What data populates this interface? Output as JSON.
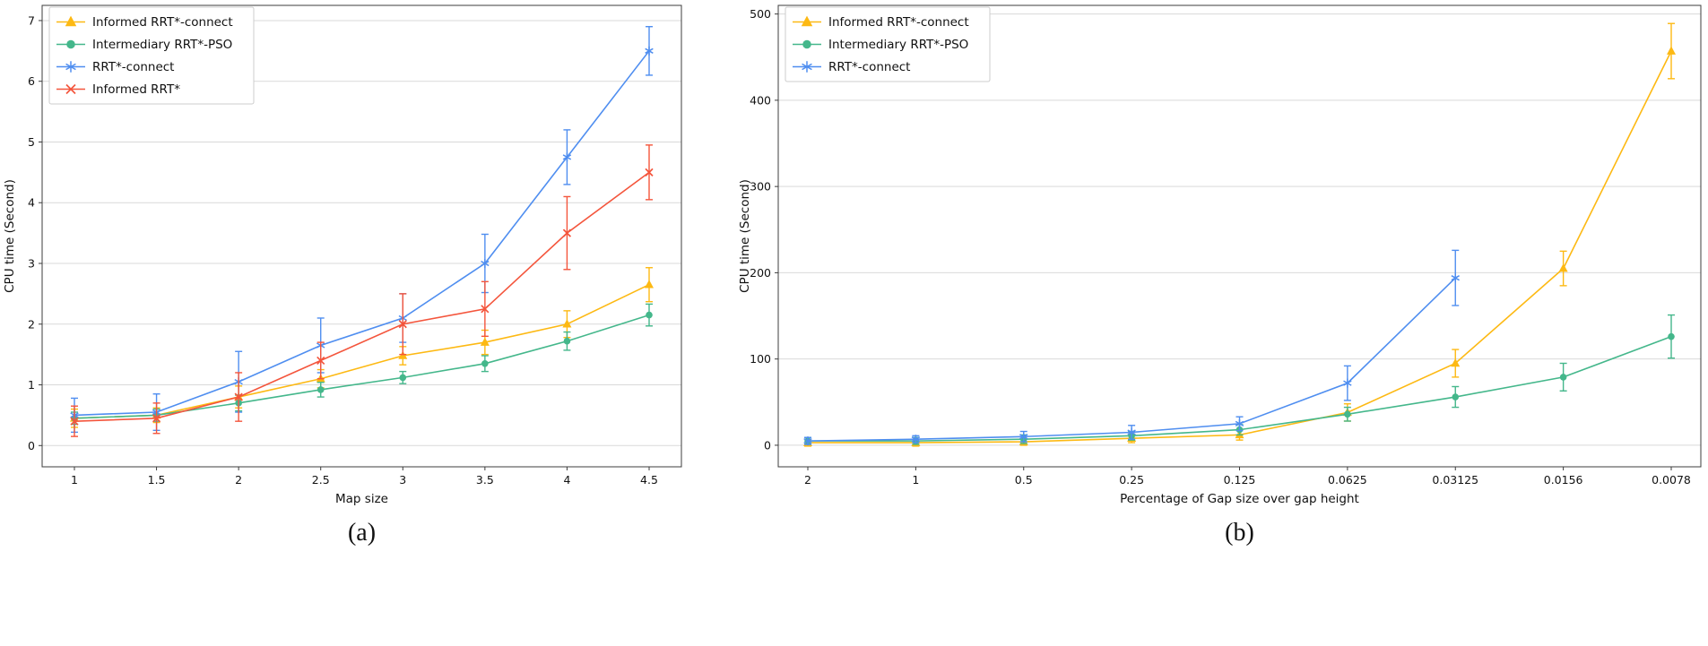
{
  "captions": {
    "a": "(a)",
    "b": "(b)"
  },
  "chart_data": [
    {
      "id": "a",
      "type": "line",
      "title": "",
      "xlabel": "Map size",
      "ylabel": "CPU time (Second)",
      "categories": [
        "1",
        "1.5",
        "2",
        "2.5",
        "3",
        "3.5",
        "4",
        "4.5"
      ],
      "y_ticks": [
        0,
        1,
        2,
        3,
        4,
        5,
        6,
        7
      ],
      "ylim": [
        -0.35,
        7.25
      ],
      "grid": "horizontal",
      "legend_position": "upper left",
      "series": [
        {
          "name": "Informed RRT*-connect",
          "color": "#FDB913",
          "marker": "triangle",
          "values": [
            0.45,
            0.5,
            0.8,
            1.1,
            1.48,
            1.7,
            2.0,
            2.65
          ],
          "yerr": [
            0.15,
            0.12,
            0.18,
            0.15,
            0.15,
            0.2,
            0.22,
            0.28
          ]
        },
        {
          "name": "Intermediary RRT*-PSO",
          "color": "#44B78B",
          "marker": "circle",
          "values": [
            0.45,
            0.5,
            0.7,
            0.92,
            1.12,
            1.35,
            1.72,
            2.15
          ],
          "yerr": [
            0.1,
            0.1,
            0.13,
            0.12,
            0.1,
            0.13,
            0.15,
            0.18
          ]
        },
        {
          "name": "RRT*-connect",
          "color": "#4F8EF0",
          "marker": "star",
          "values": [
            0.5,
            0.55,
            1.05,
            1.65,
            2.1,
            3.0,
            4.75,
            6.5
          ],
          "yerr": [
            0.28,
            0.3,
            0.5,
            0.45,
            0.4,
            0.48,
            0.45,
            0.4
          ]
        },
        {
          "name": "Informed RRT*",
          "color": "#F4553C",
          "marker": "x",
          "values": [
            0.4,
            0.45,
            0.8,
            1.4,
            2.0,
            2.25,
            3.5,
            4.5
          ],
          "yerr": [
            0.25,
            0.25,
            0.4,
            0.3,
            0.5,
            0.45,
            0.6,
            0.45
          ]
        }
      ]
    },
    {
      "id": "b",
      "type": "line",
      "title": "",
      "xlabel": "Percentage of Gap size over gap height",
      "ylabel": "CPU time (Second)",
      "categories": [
        "2",
        "1",
        "0.5",
        "0.25",
        "0.125",
        "0.0625",
        "0.03125",
        "0.0156",
        "0.0078"
      ],
      "y_ticks": [
        0,
        100,
        200,
        300,
        400,
        500
      ],
      "ylim": [
        -25,
        510
      ],
      "grid": "horizontal",
      "legend_position": "upper left",
      "series": [
        {
          "name": "Informed RRT*-connect",
          "color": "#FDB913",
          "marker": "triangle",
          "values": [
            3,
            3,
            4,
            8,
            12,
            38,
            95,
            205,
            457
          ],
          "yerr": [
            4,
            4,
            4,
            5,
            6,
            10,
            16,
            20,
            32
          ]
        },
        {
          "name": "Intermediary RRT*-PSO",
          "color": "#44B78B",
          "marker": "circle",
          "values": [
            5,
            5,
            7,
            11,
            18,
            36,
            56,
            79,
            126
          ],
          "yerr": [
            4,
            4,
            5,
            5,
            6,
            8,
            12,
            16,
            25
          ]
        },
        {
          "name": "RRT*-connect",
          "color": "#4F8EF0",
          "marker": "star",
          "values": [
            5,
            7,
            10,
            15,
            25,
            72,
            194,
            null,
            null
          ],
          "yerr": [
            4,
            4,
            6,
            8,
            8,
            20,
            32,
            null,
            null
          ]
        }
      ]
    }
  ]
}
